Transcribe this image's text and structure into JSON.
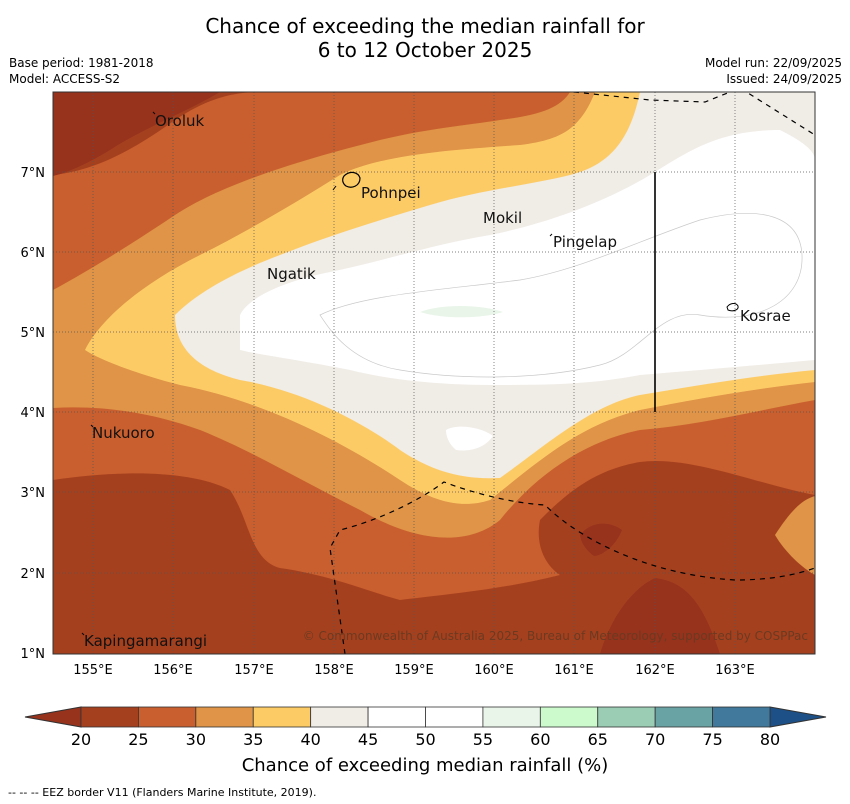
{
  "title": {
    "line1": "Chance of exceeding the median rainfall for",
    "line2": "6 to 12 October 2025"
  },
  "meta": {
    "base_period": "Base period: 1981-2018",
    "model": "Model: ACCESS-S2",
    "model_run": "Model run: 22/09/2025",
    "issued": "Issued: 24/09/2025"
  },
  "map": {
    "lon_ticks": [
      "155°E",
      "156°E",
      "157°E",
      "158°E",
      "159°E",
      "160°E",
      "161°E",
      "162°E",
      "163°E"
    ],
    "lat_ticks": [
      "7°N",
      "6°N",
      "5°N",
      "4°N",
      "3°N",
      "2°N",
      "1°N"
    ],
    "places": [
      {
        "name": "Oroluk"
      },
      {
        "name": "Pohnpei"
      },
      {
        "name": "Mokil"
      },
      {
        "name": "Pingelap"
      },
      {
        "name": "Ngatik"
      },
      {
        "name": "Kosrae"
      },
      {
        "name": "Nukuoro"
      },
      {
        "name": "Kapingamarangi"
      }
    ],
    "copyright": "© Commonwealth of Australia 2025, Bureau of Meteorology, supported by COSPPac"
  },
  "colorbar": {
    "labels": [
      "20",
      "25",
      "30",
      "35",
      "40",
      "45",
      "50",
      "55",
      "60",
      "65",
      "70",
      "75",
      "80"
    ],
    "colors": [
      "#a5401f",
      "#c95f2e",
      "#df9447",
      "#fdcb66",
      "#f0ece6",
      "#ffffff",
      "#ffffff",
      "#e9f5e9",
      "#ccfacc",
      "#9acdb4",
      "#6aa3a4",
      "#40799b"
    ],
    "low_color": "#97321d",
    "high_color": "#1d5086",
    "title": "Chance of exceeding median rainfall (%)"
  },
  "footer": "--  --  -- EEZ border V11 (Flanders Marine Institute, 2019)."
}
